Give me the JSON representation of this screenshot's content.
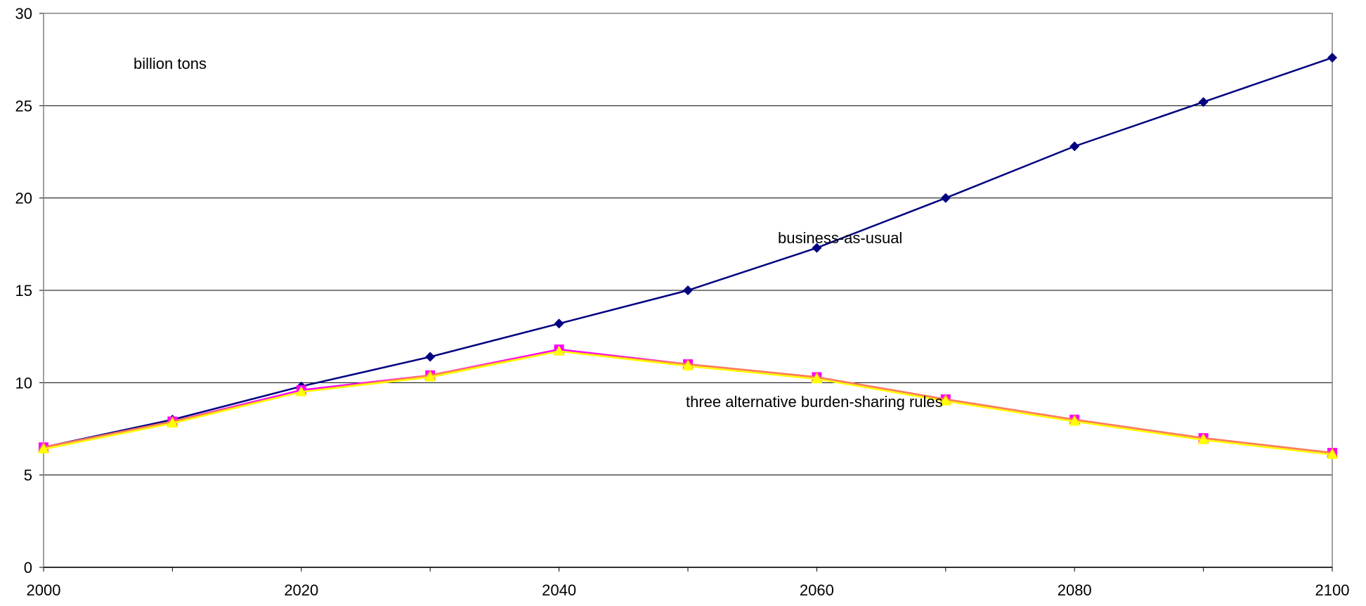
{
  "chart_data": {
    "type": "line",
    "x": [
      2000,
      2010,
      2020,
      2030,
      2040,
      2050,
      2060,
      2070,
      2080,
      2090,
      2100
    ],
    "x_ticks": [
      2000,
      2020,
      2040,
      2060,
      2080,
      2100
    ],
    "y_ticks": [
      0,
      5,
      10,
      15,
      20,
      25,
      30
    ],
    "xlim": [
      2000,
      2100
    ],
    "ylim": [
      0,
      30
    ],
    "grid": "horizontal",
    "annotations": {
      "units": "billion tons",
      "bau": "business-as-usual",
      "rules": "three alternative burden-sharing rules"
    },
    "series": [
      {
        "color": "#000080",
        "marker": "diamond",
        "values": [
          6.5,
          8.0,
          9.8,
          11.4,
          13.2,
          15.0,
          17.3,
          20.0,
          22.8,
          25.2,
          27.6
        ]
      },
      {
        "color": "#FF00FF",
        "marker": "square",
        "values": [
          6.5,
          7.9,
          9.6,
          10.4,
          11.8,
          11.0,
          10.3,
          9.1,
          8.0,
          7.0,
          6.2
        ]
      },
      {
        "color": "#FF7F50",
        "marker": "triangle",
        "values": [
          6.5,
          7.9,
          9.5,
          10.4,
          11.7,
          11.0,
          10.3,
          9.1,
          8.0,
          7.0,
          6.2
        ]
      },
      {
        "color": "#FFFF00",
        "marker": "triangle",
        "values": [
          6.4,
          7.8,
          9.5,
          10.3,
          11.7,
          10.9,
          10.2,
          9.0,
          7.9,
          6.9,
          6.1
        ]
      }
    ]
  }
}
